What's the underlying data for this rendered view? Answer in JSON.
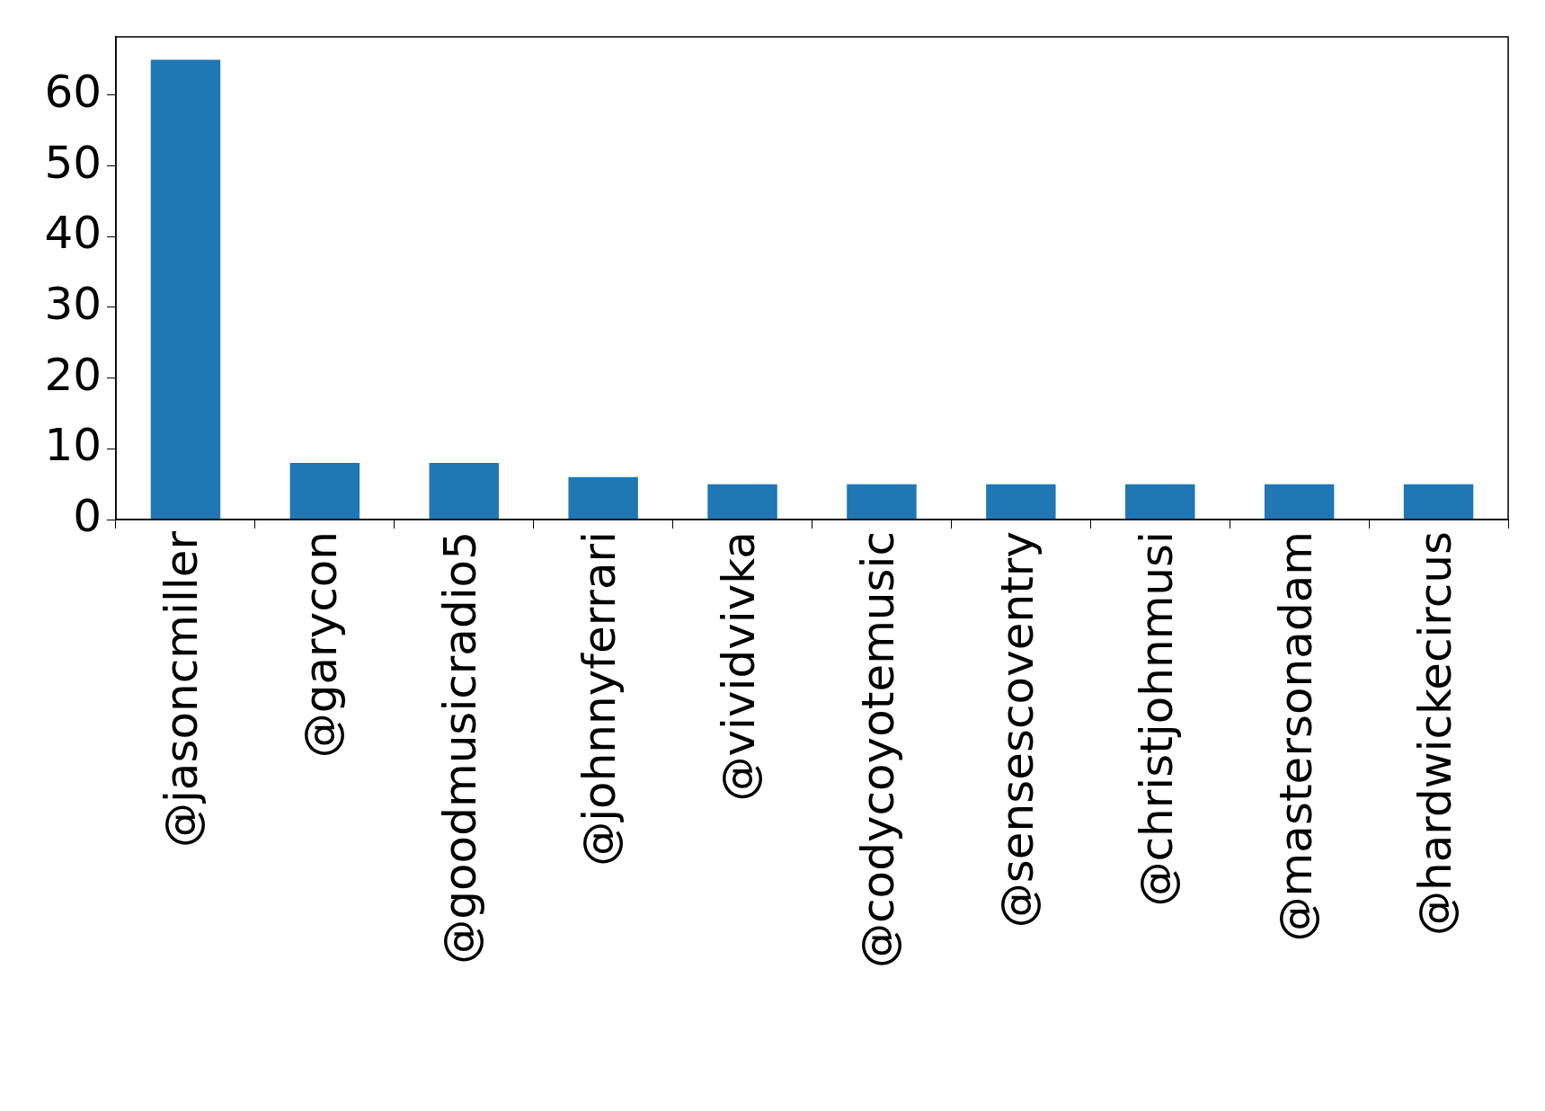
{
  "chart_data": {
    "type": "bar",
    "categories": [
      "@jasoncmiller",
      "@garycon",
      "@goodmusicradio5",
      "@johnnyferrari",
      "@vividvivka",
      "@codycoyotemusic",
      "@sensescoventry",
      "@christjohnmusi",
      "@mastersonadam",
      "@hardwickecircus"
    ],
    "values": [
      65,
      8,
      8,
      6,
      5,
      5,
      5,
      5,
      5,
      5
    ],
    "color": "#1f77b4",
    "ylim": [
      0,
      68.25
    ],
    "yticks": [
      0,
      10,
      20,
      30,
      40,
      50,
      60
    ],
    "grid": false
  }
}
